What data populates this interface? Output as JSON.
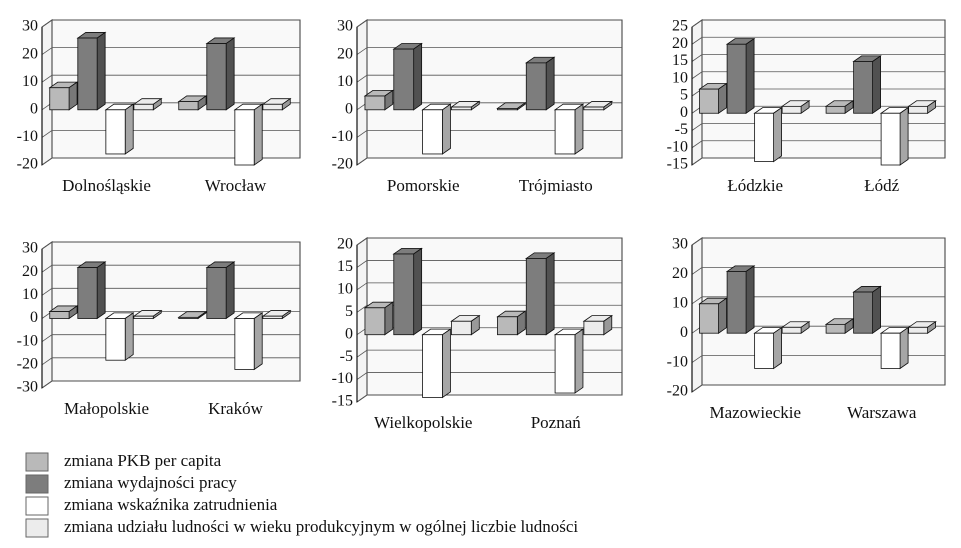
{
  "legend": [
    {
      "name": "zmiana PKB per capita",
      "color": "#b9b9b9"
    },
    {
      "name": "zmiana wydajności pracy",
      "color": "#7d7d7d"
    },
    {
      "name": "zmiana wskaźnika zatrudnienia",
      "color": "#ffffff"
    },
    {
      "name": "zmiana udziału ludności w wieku produkcyjnym w ogólnej liczbie ludności",
      "color": "#ececec"
    }
  ],
  "chart_data": [
    {
      "type": "bar",
      "categories": [
        "Dolnośląskie",
        "Wrocław"
      ],
      "ylim": [
        -20,
        30
      ],
      "yticks": [
        -20,
        -10,
        0,
        10,
        20,
        30
      ],
      "series": [
        {
          "values": [
            8,
            3
          ]
        },
        {
          "values": [
            26,
            24
          ]
        },
        {
          "values": [
            -16,
            -20
          ]
        },
        {
          "values": [
            2,
            2
          ]
        }
      ]
    },
    {
      "type": "bar",
      "categories": [
        "Pomorskie",
        "Trójmiasto"
      ],
      "ylim": [
        -20,
        30
      ],
      "yticks": [
        -20,
        -10,
        0,
        10,
        20,
        30
      ],
      "series": [
        {
          "values": [
            5,
            0.5
          ]
        },
        {
          "values": [
            22,
            17
          ]
        },
        {
          "values": [
            -16,
            -16
          ]
        },
        {
          "values": [
            1,
            1
          ]
        }
      ]
    },
    {
      "type": "bar",
      "categories": [
        "Łódzkie",
        "Łódź"
      ],
      "ylim": [
        -15,
        25
      ],
      "yticks": [
        -15,
        -10,
        -5,
        0,
        5,
        10,
        15,
        20,
        25
      ],
      "series": [
        {
          "values": [
            7,
            2
          ]
        },
        {
          "values": [
            20,
            15
          ]
        },
        {
          "values": [
            -14,
            -15
          ]
        },
        {
          "values": [
            2,
            2
          ]
        }
      ]
    },
    {
      "type": "bar",
      "categories": [
        "Małopolskie",
        "Kraków"
      ],
      "ylim": [
        -30,
        30
      ],
      "yticks": [
        -30,
        -20,
        -10,
        0,
        10,
        20,
        30
      ],
      "series": [
        {
          "values": [
            3,
            0.5
          ]
        },
        {
          "values": [
            22,
            22
          ]
        },
        {
          "values": [
            -18,
            -22
          ]
        },
        {
          "values": [
            1,
            1
          ]
        }
      ]
    },
    {
      "type": "bar",
      "categories": [
        "Wielkopolskie",
        "Poznań"
      ],
      "ylim": [
        -15,
        20
      ],
      "yticks": [
        -15,
        -10,
        -5,
        0,
        5,
        10,
        15,
        20
      ],
      "series": [
        {
          "values": [
            6,
            4
          ]
        },
        {
          "values": [
            18,
            17
          ]
        },
        {
          "values": [
            -14,
            -13
          ]
        },
        {
          "values": [
            3,
            3
          ]
        }
      ]
    },
    {
      "type": "bar",
      "categories": [
        "Mazowieckie",
        "Warszawa"
      ],
      "ylim": [
        -20,
        30
      ],
      "yticks": [
        -20,
        -10,
        0,
        10,
        20,
        30
      ],
      "series": [
        {
          "values": [
            10,
            3
          ]
        },
        {
          "values": [
            21,
            14
          ]
        },
        {
          "values": [
            -12,
            -12
          ]
        },
        {
          "values": [
            2,
            2
          ]
        }
      ]
    }
  ]
}
